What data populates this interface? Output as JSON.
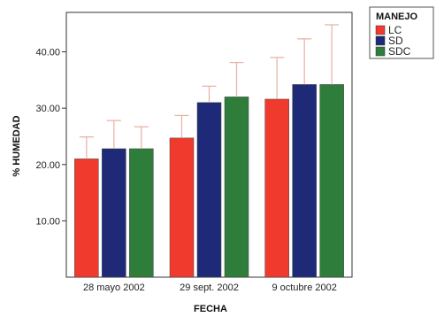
{
  "chart_data": {
    "type": "bar",
    "xlabel": "FECHA",
    "ylabel": "% HUMEDAD",
    "ylim": [
      0,
      47
    ],
    "yticks": [
      "10.00",
      "20.00",
      "30.00",
      "40.00"
    ],
    "ytick_values": [
      10,
      20,
      30,
      40
    ],
    "grid": false,
    "legend_title": "MANEJO",
    "legend_position": "right",
    "categories": [
      "28 mayo 2002",
      "29 sept. 2002",
      "9 octubre 2002"
    ],
    "series": [
      {
        "name": "LC",
        "color": "#f03a2e",
        "values": [
          21.0,
          24.7,
          31.6
        ],
        "error_upper": [
          24.9,
          28.7,
          39.0
        ]
      },
      {
        "name": "SD",
        "color": "#1e2a78",
        "values": [
          22.8,
          31.0,
          34.2
        ],
        "error_upper": [
          27.8,
          33.9,
          42.3
        ]
      },
      {
        "name": "SDC",
        "color": "#2f7d3b",
        "values": [
          22.8,
          32.0,
          34.2
        ],
        "error_upper": [
          26.7,
          38.1,
          44.8
        ]
      }
    ],
    "error_bar_color": "#e8b0a4"
  }
}
